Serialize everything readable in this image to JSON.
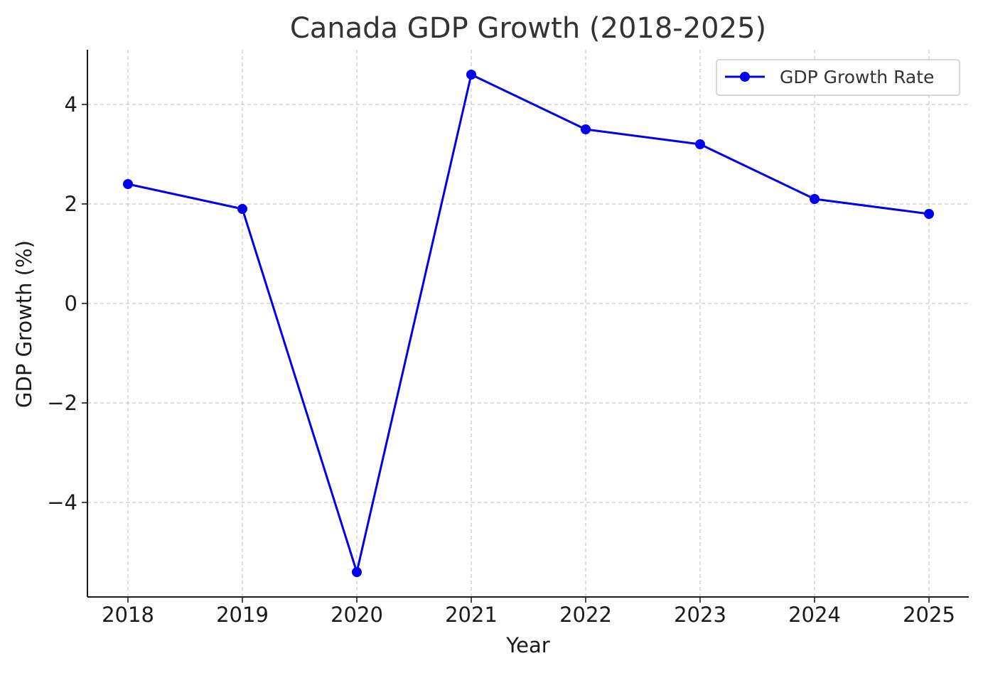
{
  "chart_data": {
    "type": "line",
    "title": "Canada GDP Growth (2018-2025)",
    "xlabel": "Year",
    "ylabel": "GDP Growth (%)",
    "categories": [
      "2018",
      "2019",
      "2020",
      "2021",
      "2022",
      "2023",
      "2024",
      "2025"
    ],
    "series": [
      {
        "name": "GDP Growth Rate",
        "color": "#0000ee",
        "values": [
          2.4,
          1.9,
          -5.4,
          4.6,
          3.5,
          3.2,
          2.1,
          1.8
        ]
      }
    ],
    "yticks": [
      -4,
      -2,
      0,
      2,
      4
    ],
    "ytick_labels": [
      "−4",
      "−2",
      "0",
      "2",
      "4"
    ],
    "ylim": [
      -5.9,
      5.1
    ],
    "grid": true,
    "legend_position": "top-right"
  }
}
